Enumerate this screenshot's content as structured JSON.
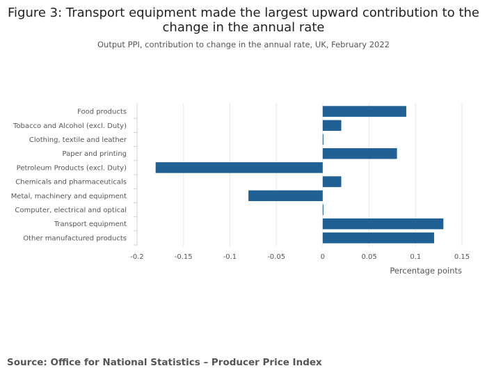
{
  "title": "Figure 3: Transport equipment made the largest upward contribution to the change in the annual rate",
  "subtitle": "Output PPI, contribution to change in the annual rate, UK, February 2022",
  "source": "Source: Office for National Statistics – Producer Price Index",
  "colors": {
    "bar": "#206095",
    "grid": "#e6e6e6",
    "tick_text": "#555555"
  },
  "chart_data": {
    "type": "bar",
    "orientation": "horizontal",
    "categories": [
      "Food products",
      "Tobacco and Alcohol (excl. Duty)",
      "Clothing, textile and leather",
      "Paper and printing",
      "Petroleum Products (excl. Duty)",
      "Chemicals and pharmaceuticals",
      "Metal, machinery and equipment",
      "Computer, electrical and optical",
      "Transport equipment",
      "Other manufactured products"
    ],
    "values": [
      0.09,
      0.02,
      0.0,
      0.08,
      -0.18,
      0.02,
      -0.08,
      0.0,
      0.13,
      0.12
    ],
    "xlabel": "Percentage points",
    "ylabel": "",
    "xlim": [
      -0.2,
      0.15
    ],
    "xticks": [
      -0.2,
      -0.15,
      -0.1,
      -0.05,
      0,
      0.05,
      0.1,
      0.15
    ],
    "xtick_labels": [
      "-0.2",
      "-0.15",
      "-0.1",
      "-0.05",
      "0",
      "0.05",
      "0.1",
      "0.15"
    ],
    "grid": true,
    "legend": "none"
  }
}
